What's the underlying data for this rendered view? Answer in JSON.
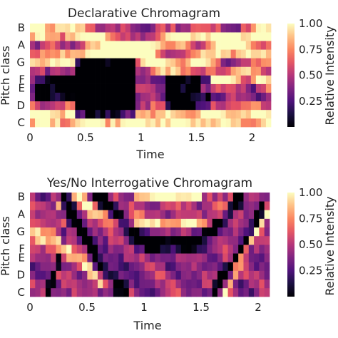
{
  "chart_data": [
    {
      "type": "heatmap",
      "title": "Declarative Chromagram",
      "xlabel": "Time",
      "ylabel": "Pitch class",
      "xlim": [
        0,
        2.17
      ],
      "x_ticks": [
        "0",
        "0.5",
        "1",
        "1.5",
        "2"
      ],
      "y_ticks": [
        "C",
        "D",
        "E",
        "F",
        "G",
        "A",
        "B"
      ],
      "pitch_classes": [
        "C",
        "C#",
        "D",
        "D#",
        "E",
        "F",
        "F#",
        "G",
        "G#",
        "A",
        "A#",
        "B"
      ],
      "n_frames": 48,
      "colorbar": {
        "label": "Relative Intensity",
        "ticks": [
          "0.25",
          "0.50",
          "0.75",
          "1.00"
        ],
        "range": [
          0,
          1
        ]
      },
      "features": [
        {
          "type": "dark_block",
          "t0": 0.4,
          "t1": 0.95,
          "p0": 0.9,
          "p1": 7.2,
          "depth": 0.95
        },
        {
          "type": "dark_block",
          "t0": 1.2,
          "t1": 1.62,
          "p0": 2.0,
          "p1": 5.0,
          "depth": 0.6
        },
        {
          "type": "dark_block",
          "t0": 0.05,
          "t1": 0.42,
          "p0": 2.8,
          "p1": 5.5,
          "depth": 0.55
        },
        {
          "type": "bright_path",
          "points": [
            [
              0.0,
              10.8
            ],
            [
              0.3,
              10.6
            ],
            [
              0.65,
              9.8
            ],
            [
              0.9,
              8.5
            ],
            [
              1.05,
              7.0
            ],
            [
              1.4,
              6.5
            ],
            [
              1.7,
              8.0
            ],
            [
              1.9,
              9.8
            ],
            [
              2.15,
              10.5
            ]
          ],
          "width": 0.7
        },
        {
          "type": "bright_path",
          "points": [
            [
              0.0,
              7.5
            ],
            [
              0.3,
              7.2
            ],
            [
              0.6,
              7.8
            ],
            [
              0.95,
              8.3
            ],
            [
              1.2,
              9.3
            ],
            [
              1.5,
              10.2
            ],
            [
              1.75,
              9.5
            ],
            [
              2.05,
              8.0
            ],
            [
              2.15,
              7.5
            ]
          ],
          "width": 0.65
        },
        {
          "type": "bright_path",
          "points": [
            [
              0.0,
              0.8
            ],
            [
              0.45,
              0.5
            ],
            [
              1.0,
              0.4
            ],
            [
              1.6,
              0.5
            ],
            [
              2.15,
              0.7
            ]
          ],
          "width": 0.9
        },
        {
          "type": "bright_path",
          "points": [
            [
              1.55,
              4.2
            ],
            [
              1.75,
              5.2
            ],
            [
              1.95,
              5.8
            ],
            [
              2.15,
              4.5
            ]
          ],
          "width": 0.6
        }
      ]
    },
    {
      "type": "heatmap",
      "title": "Yes/No Interrogative Chromagram",
      "xlabel": "Time",
      "ylabel": "Pitch class",
      "xlim": [
        0,
        2.1
      ],
      "x_ticks": [
        "0",
        "0.5",
        "1",
        "1.5",
        "2"
      ],
      "y_ticks": [
        "C",
        "D",
        "E",
        "F",
        "G",
        "A",
        "B"
      ],
      "pitch_classes": [
        "C",
        "C#",
        "D",
        "D#",
        "E",
        "F",
        "F#",
        "G",
        "G#",
        "A",
        "A#",
        "B"
      ],
      "n_frames": 46,
      "colorbar": {
        "label": "Relative Intensity",
        "ticks": [
          "0.25",
          "0.50",
          "0.75",
          "1.00"
        ],
        "range": [
          0,
          1
        ]
      },
      "features": [
        {
          "type": "dark_path",
          "points": [
            [
              0.28,
              11.8
            ],
            [
              0.4,
              8.5
            ],
            [
              0.55,
              4.5
            ],
            [
              0.7,
              1.5
            ],
            [
              0.85,
              0.0
            ]
          ],
          "width": 0.9
        },
        {
          "type": "dark_path",
          "points": [
            [
              0.55,
              11.8
            ],
            [
              0.75,
              9.0
            ],
            [
              0.95,
              6.5
            ],
            [
              1.15,
              6.0
            ],
            [
              1.4,
              5.8
            ],
            [
              1.55,
              7.0
            ],
            [
              1.7,
              9.0
            ],
            [
              1.85,
              11.5
            ]
          ],
          "width": 0.9
        },
        {
          "type": "dark_path",
          "points": [
            [
              1.6,
              0.0
            ],
            [
              1.75,
              2.5
            ],
            [
              1.9,
              6.0
            ],
            [
              2.05,
              10.0
            ]
          ],
          "width": 0.7
        },
        {
          "type": "dark_path",
          "points": [
            [
              0.15,
              0.0
            ],
            [
              0.25,
              3.5
            ],
            [
              0.3,
              7.0
            ]
          ],
          "width": 0.6
        },
        {
          "type": "bright_path",
          "points": [
            [
              0.0,
              7.0
            ],
            [
              0.2,
              6.0
            ],
            [
              0.45,
              3.5
            ],
            [
              0.6,
              1.5
            ],
            [
              0.75,
              0.5
            ]
          ],
          "width": 0.7
        },
        {
          "type": "bright_path",
          "points": [
            [
              0.38,
              11.8
            ],
            [
              0.55,
              9.5
            ],
            [
              0.75,
              8.3
            ],
            [
              1.0,
              7.8
            ],
            [
              1.3,
              7.5
            ],
            [
              1.55,
              8.0
            ],
            [
              1.7,
              9.5
            ],
            [
              1.8,
              11.5
            ]
          ],
          "width": 0.65
        },
        {
          "type": "bright_path",
          "points": [
            [
              0.2,
              11.8
            ],
            [
              0.28,
              9.0
            ],
            [
              0.32,
              5.5
            ]
          ],
          "width": 0.45
        },
        {
          "type": "bright_path",
          "points": [
            [
              1.7,
              0.0
            ],
            [
              1.82,
              3.0
            ],
            [
              1.95,
              6.5
            ],
            [
              2.08,
              9.0
            ]
          ],
          "width": 0.55
        },
        {
          "type": "bright_path",
          "points": [
            [
              0.9,
              11.5
            ],
            [
              1.2,
              11.0
            ],
            [
              1.5,
              11.3
            ]
          ],
          "width": 0.6
        }
      ]
    }
  ]
}
